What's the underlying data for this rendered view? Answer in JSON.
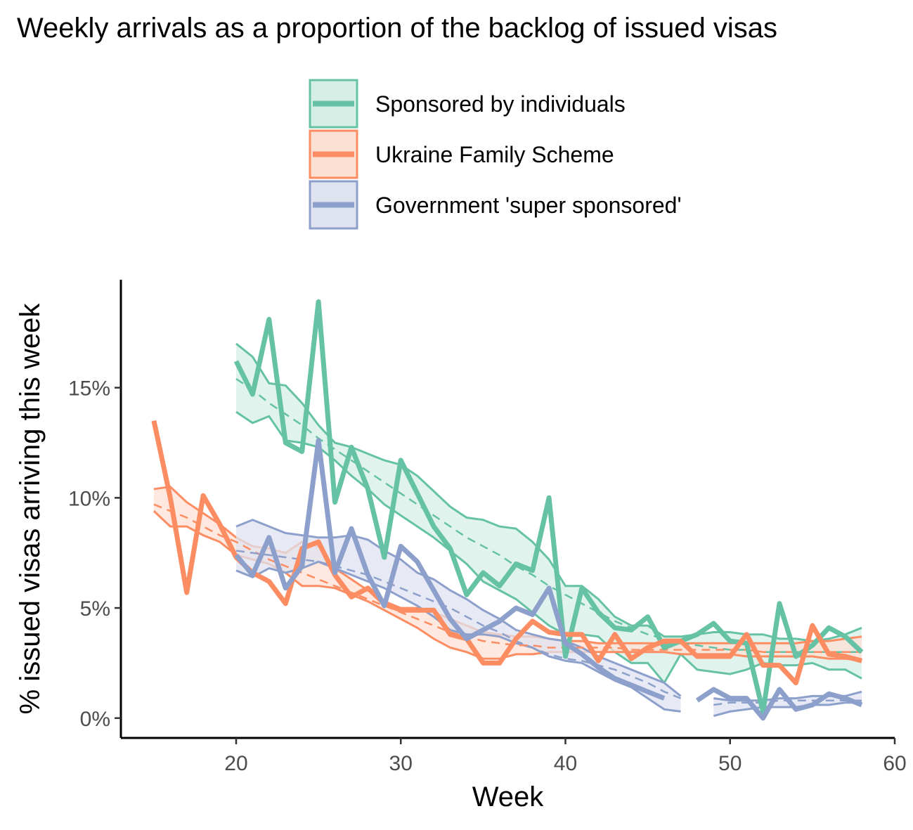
{
  "chart_data": {
    "type": "line",
    "title": "Weekly arrivals as a proportion of the backlog of issued visas",
    "xlabel": "Week",
    "ylabel": "% issued visas arriving this week",
    "xlim": [
      13,
      60
    ],
    "ylim": [
      -0.009,
      0.199
    ],
    "x_ticks": [
      20,
      30,
      40,
      50,
      60
    ],
    "x_tick_labels": [
      "20",
      "30",
      "40",
      "50",
      "60"
    ],
    "y_ticks": [
      0,
      0.05,
      0.1,
      0.15
    ],
    "y_tick_labels": [
      "0%",
      "5%",
      "10%",
      "15%"
    ],
    "legend": "top-center",
    "grid": false,
    "series": [
      {
        "name": "Sponsored by individuals",
        "color": "#66c2a5",
        "fill": "#d6efe6",
        "x": [
          20,
          21,
          22,
          23,
          24,
          25,
          26,
          27,
          28,
          29,
          30,
          31,
          32,
          33,
          34,
          35,
          36,
          37,
          38,
          39,
          40,
          41,
          42,
          43,
          44,
          45,
          46,
          47,
          48,
          49,
          50,
          51,
          52,
          53,
          54,
          55,
          56,
          57,
          58
        ],
        "actual": [
          0.162,
          0.147,
          0.181,
          0.125,
          0.121,
          0.189,
          0.098,
          0.123,
          0.104,
          0.073,
          0.117,
          0.102,
          0.087,
          0.077,
          0.056,
          0.066,
          0.06,
          0.07,
          0.067,
          0.1,
          0.028,
          0.059,
          0.048,
          0.041,
          0.04,
          0.046,
          0.032,
          0.035,
          0.038,
          0.043,
          0.035,
          0.034,
          0.003,
          0.052,
          0.028,
          0.033,
          0.041,
          0.037,
          0.03
        ],
        "trend": [
          0.154,
          0.149,
          0.143,
          0.138,
          0.133,
          0.127,
          0.122,
          0.117,
          0.112,
          0.107,
          0.102,
          0.097,
          0.092,
          0.087,
          0.082,
          0.078,
          0.074,
          0.069,
          0.065,
          0.06,
          0.056,
          0.052,
          0.048,
          0.044,
          0.041,
          0.038,
          0.036,
          0.034,
          0.033,
          0.032,
          0.031,
          0.031,
          0.03,
          0.03,
          0.03,
          0.03,
          0.03,
          0.03,
          0.03
        ],
        "upper": [
          0.17,
          0.164,
          0.152,
          0.151,
          0.143,
          0.133,
          0.125,
          0.123,
          0.12,
          0.117,
          0.115,
          0.11,
          0.103,
          0.096,
          0.091,
          0.09,
          0.087,
          0.086,
          0.08,
          0.072,
          0.06,
          0.06,
          0.054,
          0.046,
          0.042,
          0.042,
          0.037,
          0.037,
          0.038,
          0.039,
          0.039,
          0.038,
          0.038,
          0.036,
          0.036,
          0.035,
          0.036,
          0.038,
          0.041
        ],
        "lower": [
          0.139,
          0.134,
          0.137,
          0.126,
          0.125,
          0.123,
          0.117,
          0.11,
          0.104,
          0.097,
          0.092,
          0.087,
          0.082,
          0.076,
          0.07,
          0.062,
          0.058,
          0.054,
          0.048,
          0.042,
          0.038,
          0.038,
          0.037,
          0.03,
          0.025,
          0.025,
          0.016,
          0.029,
          0.022,
          0.021,
          0.02,
          0.022,
          0.025,
          0.024,
          0.024,
          0.025,
          0.022,
          0.022,
          0.018
        ]
      },
      {
        "name": "Ukraine Family Scheme",
        "color": "#fc8d62",
        "fill": "#fde0d4",
        "x": [
          15,
          16,
          17,
          18,
          19,
          20,
          21,
          22,
          23,
          24,
          25,
          26,
          27,
          28,
          29,
          30,
          31,
          32,
          33,
          34,
          35,
          36,
          37,
          38,
          39,
          40,
          41,
          42,
          43,
          44,
          45,
          46,
          47,
          48,
          49,
          50,
          51,
          52,
          53,
          54,
          55,
          56,
          57,
          58
        ],
        "actual": [
          0.135,
          0.1,
          0.057,
          0.101,
          0.088,
          0.073,
          0.066,
          0.062,
          0.052,
          0.077,
          0.08,
          0.065,
          0.055,
          0.059,
          0.052,
          0.049,
          0.049,
          0.049,
          0.038,
          0.036,
          0.025,
          0.025,
          0.036,
          0.044,
          0.039,
          0.038,
          0.038,
          0.026,
          0.038,
          0.027,
          0.032,
          0.035,
          0.035,
          0.028,
          0.028,
          0.028,
          0.038,
          0.024,
          0.024,
          0.016,
          0.042,
          0.029,
          0.028,
          0.026
        ],
        "trend": [
          0.097,
          0.094,
          0.091,
          0.087,
          0.083,
          0.08,
          0.076,
          0.072,
          0.069,
          0.066,
          0.063,
          0.06,
          0.057,
          0.054,
          0.051,
          0.048,
          0.045,
          0.042,
          0.039,
          0.037,
          0.035,
          0.034,
          0.033,
          0.033,
          0.032,
          0.032,
          0.032,
          0.032,
          0.032,
          0.031,
          0.031,
          0.031,
          0.031,
          0.031,
          0.031,
          0.031,
          0.031,
          0.03,
          0.03,
          0.03,
          0.03,
          0.03,
          0.03,
          0.03
        ],
        "upper": [
          0.104,
          0.105,
          0.098,
          0.093,
          0.088,
          0.082,
          0.078,
          0.077,
          0.075,
          0.08,
          0.078,
          0.068,
          0.063,
          0.058,
          0.053,
          0.05,
          0.05,
          0.048,
          0.045,
          0.042,
          0.039,
          0.038,
          0.037,
          0.037,
          0.036,
          0.035,
          0.035,
          0.034,
          0.034,
          0.034,
          0.034,
          0.034,
          0.034,
          0.034,
          0.034,
          0.034,
          0.034,
          0.034,
          0.034,
          0.034,
          0.035,
          0.035,
          0.036,
          0.037
        ],
        "lower": [
          0.094,
          0.087,
          0.087,
          0.083,
          0.08,
          0.074,
          0.072,
          0.07,
          0.066,
          0.06,
          0.06,
          0.059,
          0.056,
          0.053,
          0.049,
          0.045,
          0.041,
          0.036,
          0.032,
          0.03,
          0.027,
          0.027,
          0.029,
          0.029,
          0.03,
          0.03,
          0.03,
          0.03,
          0.03,
          0.03,
          0.03,
          0.03,
          0.029,
          0.029,
          0.029,
          0.029,
          0.028,
          0.028,
          0.028,
          0.028,
          0.028,
          0.027,
          0.027,
          0.026
        ]
      },
      {
        "name": "Government 'super sponsored'",
        "color": "#8da0cb",
        "fill": "#dfe3f0",
        "x": [
          20,
          21,
          22,
          23,
          24,
          25,
          26,
          27,
          28,
          29,
          30,
          31,
          32,
          33,
          34,
          35,
          36,
          37,
          38,
          39,
          40,
          41,
          42,
          43,
          44,
          45,
          46,
          47,
          48,
          49,
          50,
          51,
          52,
          53,
          54,
          55,
          56,
          57,
          58
        ],
        "actual": [
          0.074,
          0.065,
          0.082,
          0.059,
          0.069,
          0.126,
          0.066,
          0.086,
          0.065,
          0.051,
          0.078,
          0.071,
          0.058,
          0.045,
          0.036,
          0.04,
          0.044,
          0.05,
          0.047,
          0.059,
          0.034,
          0.029,
          0.023,
          0.018,
          0.015,
          0.012,
          0.009,
          null,
          0.008,
          0.013,
          0.009,
          0.009,
          0.0,
          0.013,
          0.004,
          0.006,
          0.011,
          0.009,
          0.006
        ],
        "trend": [
          0.076,
          0.075,
          0.074,
          0.073,
          0.072,
          0.071,
          0.069,
          0.067,
          0.065,
          0.062,
          0.059,
          0.056,
          0.053,
          0.05,
          0.046,
          0.042,
          0.039,
          0.035,
          0.032,
          0.029,
          0.027,
          0.026,
          0.024,
          0.022,
          0.019,
          0.016,
          0.012,
          0.009,
          null,
          0.006,
          0.007,
          0.007,
          0.007,
          0.008,
          0.008,
          0.008,
          0.008,
          0.008,
          0.008
        ],
        "upper": [
          0.087,
          0.09,
          0.087,
          0.084,
          0.083,
          0.082,
          0.082,
          0.083,
          0.081,
          0.076,
          0.072,
          0.066,
          0.063,
          0.058,
          0.054,
          0.049,
          0.045,
          0.04,
          0.038,
          0.036,
          0.035,
          0.032,
          0.028,
          0.025,
          0.022,
          0.019,
          0.016,
          0.01,
          null,
          0.009,
          0.008,
          0.008,
          0.008,
          0.009,
          0.009,
          0.01,
          0.01,
          0.01,
          0.012
        ],
        "lower": [
          0.067,
          0.064,
          0.068,
          0.066,
          0.068,
          0.071,
          0.068,
          0.065,
          0.062,
          0.059,
          0.055,
          0.051,
          0.046,
          0.04,
          0.038,
          0.038,
          0.037,
          0.034,
          0.032,
          0.028,
          0.026,
          0.025,
          0.021,
          0.017,
          0.014,
          0.009,
          0.004,
          0.003,
          null,
          0.001,
          0.003,
          0.004,
          0.005,
          0.005,
          0.005,
          0.006,
          0.006,
          0.007,
          0.007
        ]
      }
    ]
  }
}
